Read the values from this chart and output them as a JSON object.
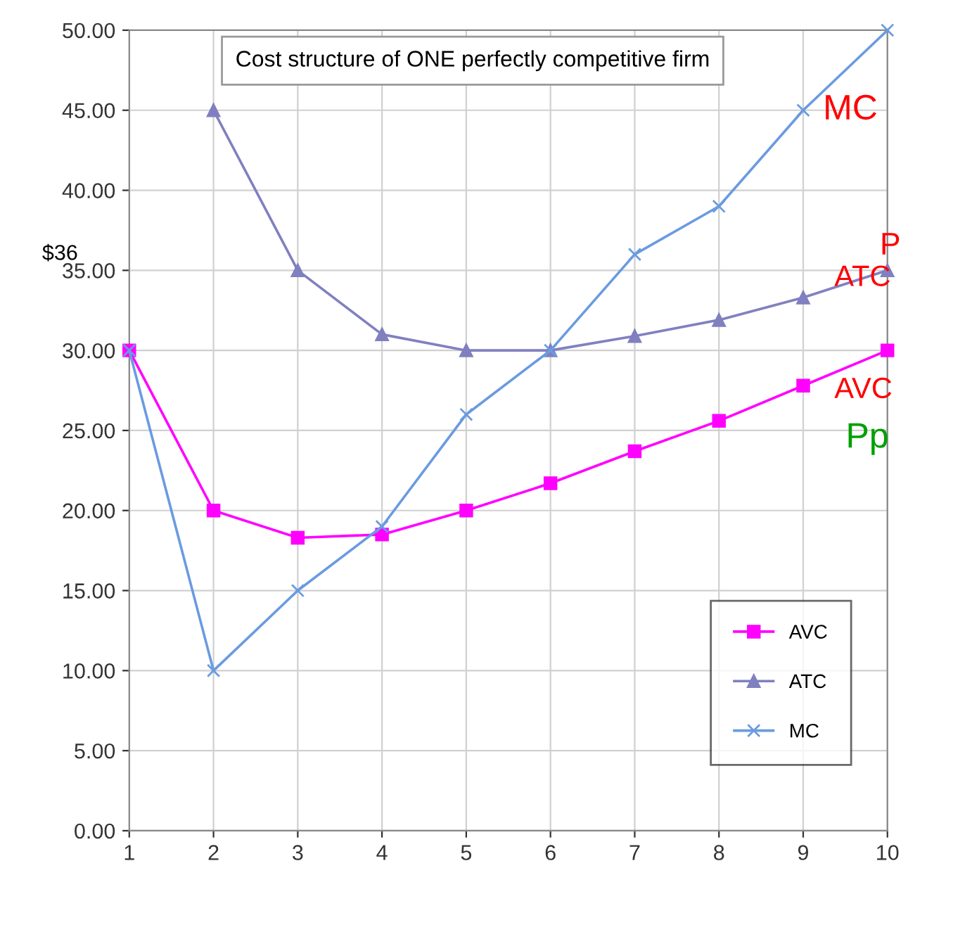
{
  "chart_data": {
    "type": "line",
    "title": "Cost structure of ONE perfectly competitive firm",
    "x": [
      1,
      2,
      3,
      4,
      5,
      6,
      7,
      8,
      9,
      10
    ],
    "series": [
      {
        "name": "AVC",
        "color": "#ff00ff",
        "marker": "square",
        "values": [
          30,
          20,
          18.3,
          18.5,
          20,
          21.7,
          23.7,
          25.6,
          27.8,
          30
        ]
      },
      {
        "name": "ATC",
        "color": "#8080c0",
        "marker": "triangle",
        "values": [
          null,
          45,
          35,
          31,
          30,
          30,
          30.9,
          31.9,
          33.3,
          35
        ]
      },
      {
        "name": "MC",
        "color": "#6a9be0",
        "marker": "cross",
        "values": [
          30,
          10,
          15,
          19,
          26,
          30,
          36,
          39,
          45,
          50
        ]
      }
    ],
    "xlim": [
      1,
      10
    ],
    "xticks": [
      1,
      2,
      3,
      4,
      5,
      6,
      7,
      8,
      9,
      10
    ],
    "ylim": [
      0,
      50
    ],
    "yticks": [
      {
        "value": 0,
        "label": "0.00"
      },
      {
        "value": 5,
        "label": "5.00"
      },
      {
        "value": 10,
        "label": "10.00"
      },
      {
        "value": 15,
        "label": "15.00"
      },
      {
        "value": 20,
        "label": "20.00"
      },
      {
        "value": 25,
        "label": "25.00"
      },
      {
        "value": 30,
        "label": "30.00"
      },
      {
        "value": 35,
        "label": "35.00"
      },
      {
        "value": 40,
        "label": "40.00"
      },
      {
        "value": 45,
        "label": "45.00"
      },
      {
        "value": 50,
        "label": "50.00"
      }
    ],
    "grid": true,
    "legend": "bottom right",
    "line_style": "solid",
    "annotations": [
      "$36",
      "MC",
      "P",
      "ATC",
      "AVC",
      "Pp"
    ]
  }
}
